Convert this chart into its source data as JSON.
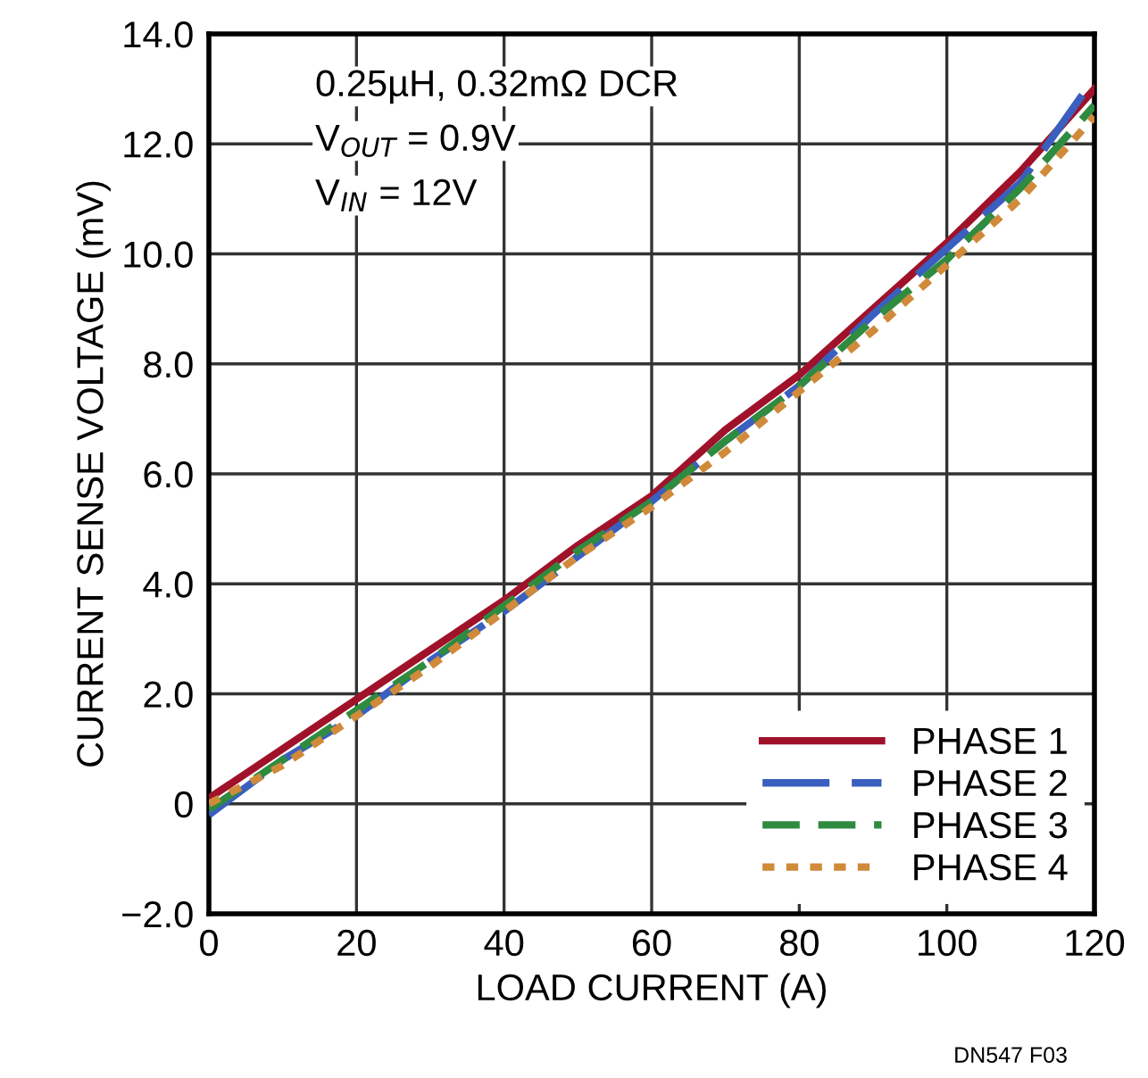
{
  "chart_data": {
    "type": "line",
    "xlabel": "LOAD CURRENT (A)",
    "ylabel": "CURRENT SENSE VOLTAGE (mV)",
    "x": [
      0,
      10,
      20,
      30,
      40,
      50,
      60,
      70,
      80,
      90,
      100,
      110,
      120
    ],
    "series": [
      {
        "name": "PHASE 1",
        "color": "#a0122a",
        "line_style": "solid",
        "values": [
          0.1,
          1.0,
          1.9,
          2.8,
          3.7,
          4.7,
          5.6,
          6.8,
          7.8,
          9.0,
          10.2,
          11.5,
          13.0
        ]
      },
      {
        "name": "PHASE 2",
        "color": "#3a5fbf",
        "line_style": "longdash",
        "values": [
          -0.2,
          0.8,
          1.6,
          2.6,
          3.5,
          4.5,
          5.5,
          6.6,
          7.6,
          8.9,
          10.1,
          11.3,
          13.2
        ]
      },
      {
        "name": "PHASE 3",
        "color": "#2e8b40",
        "line_style": "dashed",
        "values": [
          -0.1,
          0.8,
          1.7,
          2.6,
          3.6,
          4.6,
          5.5,
          6.6,
          7.6,
          8.8,
          9.9,
          11.2,
          12.7
        ]
      },
      {
        "name": "PHASE 4",
        "color": "#d08a3a",
        "line_style": "dotted",
        "values": [
          0.0,
          0.7,
          1.6,
          2.5,
          3.5,
          4.5,
          5.4,
          6.4,
          7.5,
          8.6,
          9.8,
          11.0,
          12.5
        ]
      }
    ],
    "xlim": [
      0,
      120
    ],
    "xticks": [
      0,
      20,
      40,
      60,
      80,
      100,
      120
    ],
    "ylim": [
      -2,
      14
    ],
    "yticks": [
      {
        "value": -2,
        "label": "−2.0"
      },
      {
        "value": 0,
        "label": "0"
      },
      {
        "value": 2,
        "label": "2.0"
      },
      {
        "value": 4,
        "label": "4.0"
      },
      {
        "value": 6,
        "label": "6.0"
      },
      {
        "value": 8,
        "label": "8.0"
      },
      {
        "value": 10,
        "label": "10.0"
      },
      {
        "value": 12,
        "label": "12.0"
      },
      {
        "value": 14,
        "label": "14.0"
      }
    ],
    "grid": true,
    "legend": "bottom right",
    "annotations": [
      "0.25µH, 0.32mΩ DCR",
      "V$_{OUT}$ = 0.9V",
      "V$_{IN}$ = 12V",
      "DN547 F03"
    ]
  }
}
